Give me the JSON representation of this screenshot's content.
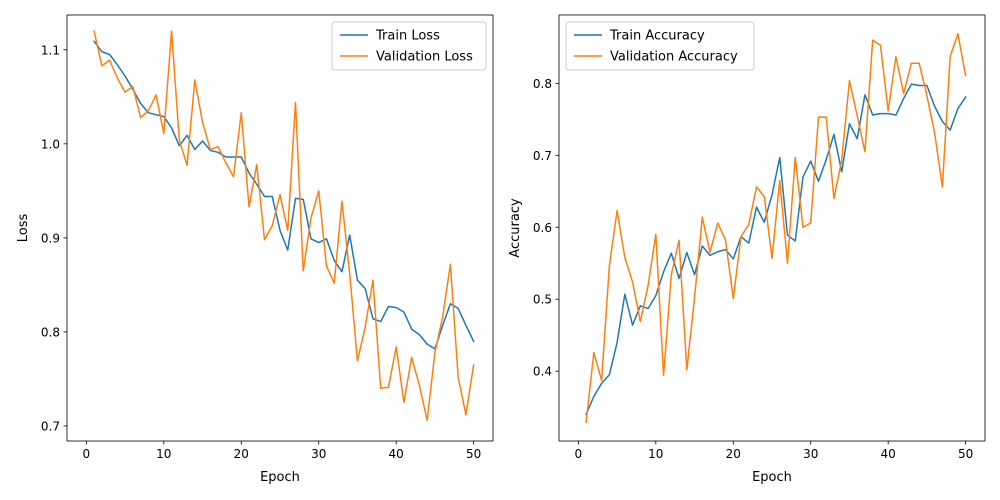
{
  "chart_data": [
    {
      "type": "line",
      "xlabel": "Epoch",
      "ylabel": "Loss",
      "xlim": [
        -2.5,
        52.5
      ],
      "ylim": [
        0.684,
        1.137
      ],
      "xticks": [
        0,
        10,
        20,
        30,
        40,
        50
      ],
      "yticks": [
        0.7,
        0.8,
        0.9,
        1.0,
        1.1
      ],
      "ytick_labels": [
        "0.7",
        "0.8",
        "0.9",
        "1.0",
        "1.1"
      ],
      "legend_position": "upper right",
      "x": [
        1,
        2,
        3,
        4,
        5,
        6,
        7,
        8,
        9,
        10,
        11,
        12,
        13,
        14,
        15,
        16,
        17,
        18,
        19,
        20,
        21,
        22,
        23,
        24,
        25,
        26,
        27,
        28,
        29,
        30,
        31,
        32,
        33,
        34,
        35,
        36,
        37,
        38,
        39,
        40,
        41,
        42,
        43,
        44,
        45,
        46,
        47,
        48,
        49,
        50
      ],
      "series": [
        {
          "name": "Train Loss",
          "color": "#1f77b4",
          "values": [
            1.109,
            1.098,
            1.095,
            1.084,
            1.072,
            1.058,
            1.043,
            1.033,
            1.031,
            1.029,
            1.017,
            0.998,
            1.009,
            0.994,
            1.003,
            0.993,
            0.991,
            0.986,
            0.986,
            0.986,
            0.969,
            0.957,
            0.944,
            0.944,
            0.908,
            0.887,
            0.942,
            0.941,
            0.899,
            0.895,
            0.899,
            0.876,
            0.864,
            0.903,
            0.855,
            0.846,
            0.814,
            0.811,
            0.827,
            0.826,
            0.821,
            0.803,
            0.797,
            0.787,
            0.782,
            0.807,
            0.83,
            0.825,
            0.807,
            0.79
          ]
        },
        {
          "name": "Validation Loss",
          "color": "#ff7f0e",
          "values": [
            1.12,
            1.083,
            1.089,
            1.07,
            1.055,
            1.061,
            1.028,
            1.035,
            1.052,
            1.011,
            1.12,
            1.004,
            0.977,
            1.068,
            1.023,
            0.994,
            0.997,
            0.98,
            0.965,
            1.033,
            0.933,
            0.978,
            0.898,
            0.913,
            0.946,
            0.908,
            1.044,
            0.865,
            0.921,
            0.95,
            0.87,
            0.852,
            0.939,
            0.862,
            0.769,
            0.805,
            0.855,
            0.74,
            0.741,
            0.784,
            0.725,
            0.773,
            0.743,
            0.706,
            0.778,
            0.816,
            0.872,
            0.752,
            0.712,
            0.765
          ]
        }
      ]
    },
    {
      "type": "line",
      "xlabel": "Epoch",
      "ylabel": "Accuracy",
      "xlim": [
        -2.5,
        52.5
      ],
      "ylim": [
        0.303,
        0.895
      ],
      "xticks": [
        0,
        10,
        20,
        30,
        40,
        50
      ],
      "yticks": [
        0.4,
        0.5,
        0.6,
        0.7,
        0.8
      ],
      "ytick_labels": [
        "0.4",
        "0.5",
        "0.6",
        "0.7",
        "0.8"
      ],
      "legend_position": "upper left",
      "x": [
        1,
        2,
        3,
        4,
        5,
        6,
        7,
        8,
        9,
        10,
        11,
        12,
        13,
        14,
        15,
        16,
        17,
        18,
        19,
        20,
        21,
        22,
        23,
        24,
        25,
        26,
        27,
        28,
        29,
        30,
        31,
        32,
        33,
        34,
        35,
        36,
        37,
        38,
        39,
        40,
        41,
        42,
        43,
        44,
        45,
        46,
        47,
        48,
        49,
        50
      ],
      "series": [
        {
          "name": "Train Accuracy",
          "color": "#1f77b4",
          "values": [
            0.34,
            0.365,
            0.383,
            0.395,
            0.44,
            0.507,
            0.464,
            0.491,
            0.487,
            0.505,
            0.538,
            0.564,
            0.529,
            0.565,
            0.534,
            0.574,
            0.561,
            0.566,
            0.569,
            0.556,
            0.587,
            0.578,
            0.628,
            0.607,
            0.645,
            0.697,
            0.589,
            0.581,
            0.67,
            0.692,
            0.664,
            0.694,
            0.729,
            0.677,
            0.744,
            0.723,
            0.784,
            0.756,
            0.758,
            0.758,
            0.756,
            0.779,
            0.799,
            0.797,
            0.797,
            0.768,
            0.747,
            0.735,
            0.765,
            0.781
          ]
        },
        {
          "name": "Validation Accuracy",
          "color": "#ff7f0e",
          "values": [
            0.329,
            0.426,
            0.387,
            0.546,
            0.623,
            0.558,
            0.524,
            0.469,
            0.519,
            0.59,
            0.394,
            0.534,
            0.582,
            0.402,
            0.502,
            0.614,
            0.565,
            0.606,
            0.582,
            0.501,
            0.587,
            0.604,
            0.656,
            0.643,
            0.557,
            0.665,
            0.55,
            0.697,
            0.6,
            0.606,
            0.753,
            0.753,
            0.64,
            0.693,
            0.804,
            0.755,
            0.705,
            0.86,
            0.853,
            0.762,
            0.837,
            0.786,
            0.828,
            0.828,
            0.783,
            0.731,
            0.656,
            0.837,
            0.869,
            0.811
          ]
        }
      ]
    }
  ]
}
